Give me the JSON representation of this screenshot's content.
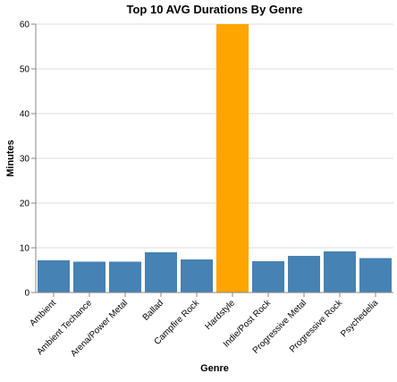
{
  "chart_data": {
    "type": "bar",
    "title": "Top 10 AVG Durations By Genre",
    "xlabel": "Genre",
    "ylabel": "Minutes",
    "ylim": [
      0,
      60
    ],
    "yticks": [
      0,
      10,
      20,
      30,
      40,
      50,
      60
    ],
    "grid": true,
    "categories": [
      "Ambient",
      "Ambient Techance",
      "Arena/Power Metal",
      "Ballad",
      "Campfire Rock",
      "Hardstyle",
      "Indie/Post Rock",
      "Progressive Metal",
      "Progressive Rock",
      "Psychedelia"
    ],
    "values": [
      7.2,
      6.9,
      6.9,
      9.0,
      7.4,
      60,
      7.0,
      8.2,
      9.2,
      7.7
    ],
    "colors": {
      "default": "#4682b4",
      "highlight": "#ffa500"
    },
    "highlight_category": "Hardstyle"
  }
}
